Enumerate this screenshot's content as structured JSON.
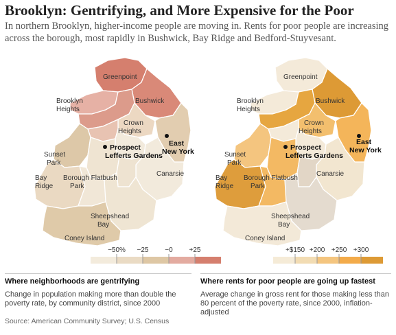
{
  "title": "Brooklyn: Gentrifying, and More Expensive for the Poor",
  "subtitle": "In northern Brooklyn, higher-income people are moving in. Rents for poor people are increasing across the borough, most rapidly in Bushwick, Bay Ridge and Bedford-Stuyvesant.",
  "labels": {
    "greenpoint": "Greenpoint",
    "bushwick": "Bushwick",
    "brooklyn": "Brooklyn",
    "heights": "Heights",
    "crown": "Crown",
    "prospect": "Prospect",
    "lefferts": "Lefferts Gardens",
    "east": "East",
    "new_york": "New York",
    "sunset": "Sunset",
    "park": "Park",
    "bay": "Bay",
    "ridge": "Ridge",
    "borough": "Borough Flatbush",
    "canarsie": "Canarsie",
    "sheepshead": "Sheepshead",
    "coney": "Coney Island"
  },
  "legend_left": {
    "ticks": [
      "−50%",
      "−25",
      "−0",
      "+25"
    ],
    "colors": [
      "#f3ebdc",
      "#eadbc4",
      "#dec7a4",
      "#e3aba0",
      "#d57f6e"
    ]
  },
  "legend_right": {
    "ticks": [
      "+$150",
      "+200",
      "+250",
      "+300"
    ],
    "colors": [
      "#f5ebd7",
      "#f2dcb3",
      "#f4c57f",
      "#f3ab4a",
      "#dd9a35"
    ]
  },
  "captions": {
    "left_head": "Where neighborhoods are gentrifying",
    "left_body": "Change in population making more than double the poverty rate, by community district, since 2000",
    "right_head": "Where rents for poor people are going up fastest",
    "right_body": "Average change in gross rent for those making less than 80 percent of the poverty rate, since 2000, inflation-adjusted"
  },
  "source": "Source: American Community Survey; U.S. Census"
}
